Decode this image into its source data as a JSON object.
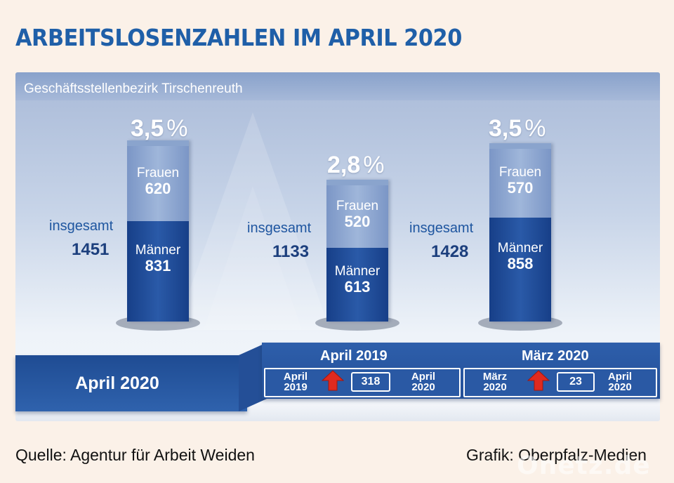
{
  "title": "ARBEITSLOSENZAHLEN IM APRIL 2020",
  "subtitle": "Geschäftsstellenbezirk Tirschenreuth",
  "chart_data": {
    "type": "bar",
    "stacked": true,
    "categories": [
      "April 2020",
      "April 2019",
      "März 2020"
    ],
    "rates": [
      "3,5",
      "2,8",
      "3,5"
    ],
    "rate_symbol": "%",
    "series": [
      {
        "name": "Männer",
        "values": [
          831,
          613,
          858
        ],
        "color": "#234f98"
      },
      {
        "name": "Frauen",
        "values": [
          620,
          520,
          570
        ],
        "color": "#8ea8d2"
      }
    ],
    "totals_label": "insgesamt",
    "totals": [
      1451,
      1133,
      1428
    ]
  },
  "comparisons": [
    {
      "title": "April 2019",
      "from": "April 2019",
      "change": "318",
      "to": "April 2020",
      "direction": "up"
    },
    {
      "title": "März 2020",
      "from": "März 2020",
      "change": "23",
      "to": "April 2020",
      "direction": "up"
    }
  ],
  "current_label": "April 2020",
  "footer": {
    "source": "Quelle: Agentur für Arbeit Weiden",
    "credit": "Grafik: Oberpfalz-Medien"
  },
  "watermark": "Onetz.de",
  "colors": {
    "accent": "#1f5fa8",
    "arrow": "#e02a1f"
  }
}
